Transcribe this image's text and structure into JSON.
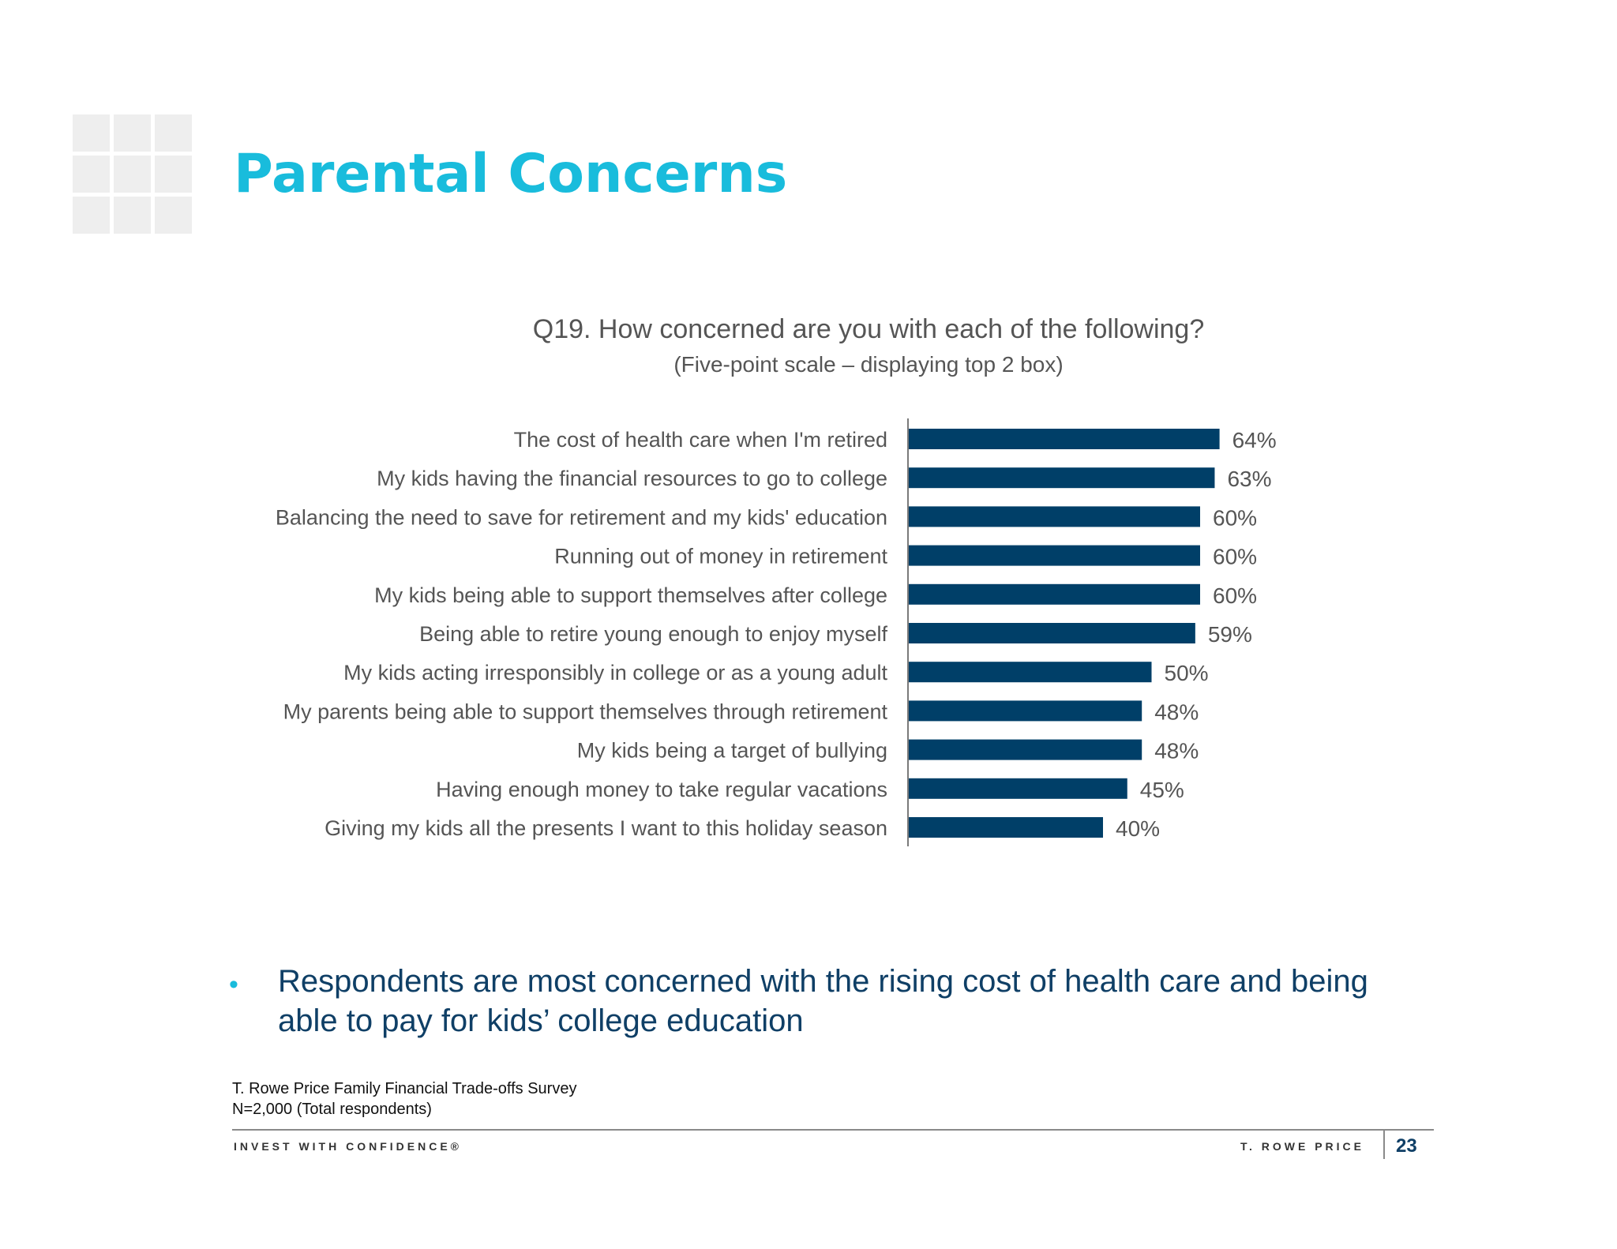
{
  "page": {
    "title": "Parental Concerns",
    "bullet": "Respondents are most concerned with the rising cost of health care and being able to pay for kids’ college education",
    "source_line1": "T. Rowe Price Family Financial Trade-offs Survey",
    "source_line2": "N=2,000 (Total respondents)",
    "footer_tagline": "INVEST WITH CONFIDENCE®",
    "footer_brand": "T. ROWE PRICE",
    "page_number": "23"
  },
  "colors": {
    "title": "#19bcdc",
    "bar": "#003f68",
    "label_text": "#555555",
    "bullet_text": "#0f3f66"
  },
  "chart_data": {
    "type": "bar",
    "orientation": "horizontal",
    "title": "Q19. How concerned are you with each of the following?",
    "subtitle": "(Five-point scale – displaying top 2 box)",
    "categories": [
      "The cost of health care when I'm retired",
      "My kids having the financial resources to go to college",
      "Balancing the need to save for retirement and my kids' education",
      "Running out of money in retirement",
      "My kids being able to support themselves after college",
      "Being able to retire young enough to enjoy myself",
      "My kids acting irresponsibly in college or as a young adult",
      "My parents being able to support themselves through retirement",
      "My kids being a target of bullying",
      "Having enough money to take regular vacations",
      "Giving my kids all the presents I want to this holiday season"
    ],
    "values": [
      64,
      63,
      60,
      60,
      60,
      59,
      50,
      48,
      48,
      45,
      40
    ],
    "value_labels": [
      "64%",
      "63%",
      "60%",
      "60%",
      "60%",
      "59%",
      "50%",
      "48%",
      "48%",
      "45%",
      "40%"
    ],
    "unit": "%",
    "xlim": [
      0,
      100
    ],
    "grid": false,
    "legend": "none"
  }
}
